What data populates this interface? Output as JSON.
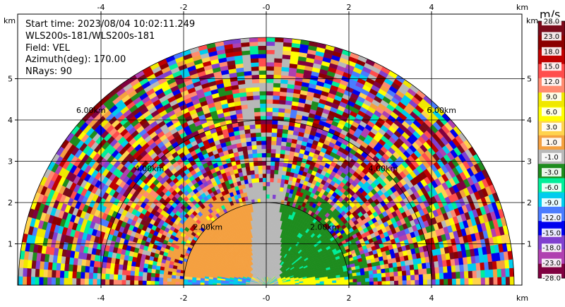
{
  "chart_data": {
    "type": "heatmap",
    "subtype": "radar-rhi-sector",
    "info": {
      "start_time": "Start time: 2023/08/04 10:02:11.249",
      "instrument": "WLS200s-181/WLS200s-181",
      "field": "Field: VEL",
      "azimuth": "Azimuth(deg): 170.00",
      "nrays": "NRays: 90"
    },
    "x_unit": "km",
    "y_unit": "km",
    "xlim": [
      -6.2,
      6.2
    ],
    "ylim": [
      0,
      5.9
    ],
    "x_ticks": [
      "-4",
      "-2",
      "-0",
      "2",
      "4"
    ],
    "x_tick_values": [
      -4,
      -2,
      0,
      2,
      4
    ],
    "y_ticks": [
      "1",
      "2",
      "3",
      "4",
      "5"
    ],
    "y_tick_values": [
      1,
      2,
      3,
      4,
      5
    ],
    "grid": true,
    "max_range_km": 6.0,
    "range_rings": [
      {
        "r": 2.0,
        "label": "2.00km"
      },
      {
        "r": 4.0,
        "label": "4.00km"
      },
      {
        "r": 6.0,
        "label": "6.00km"
      }
    ],
    "colorbar": {
      "unit": "m/s",
      "labels": [
        "28.0",
        "23.0",
        "18.0",
        "15.0",
        "12.0",
        "9.0",
        "6.0",
        "3.0",
        "1.0",
        "-1.0",
        "-3.0",
        "-6.0",
        "-9.0",
        "-12.0",
        "-15.0",
        "-18.0",
        "-23.0",
        "-28.0"
      ],
      "colors": [
        "#7a0a1a",
        "#8b0000",
        "#c00000",
        "#ff4d4d",
        "#ff8a70",
        "#f0e800",
        "#ffff00",
        "#ffd34d",
        "#f4a040",
        "#b8b8b8",
        "#1e8c1e",
        "#00ee99",
        "#00ccee",
        "#4a7cff",
        "#0000ee",
        "#8040d0",
        "#b040b0",
        "#800040"
      ]
    },
    "near_field": [
      {
        "region": "x -1.5 to 0 km, height 0 to 2 km",
        "value_range": [
          1,
          3
        ],
        "description": "receding"
      },
      {
        "region": "x 0 to 1.5 km, height 0 to 2 km",
        "value_range": [
          -3,
          -1
        ],
        "description": "approaching"
      },
      {
        "region": "x -0.5 to 0.5 km, height 0 to 2.2 km",
        "value_range": [
          -1,
          1
        ],
        "description": "near zero"
      },
      {
        "region": "range 2 to 6 km",
        "value_range": [
          -28,
          28
        ],
        "description": "noisy / aliased"
      }
    ]
  }
}
